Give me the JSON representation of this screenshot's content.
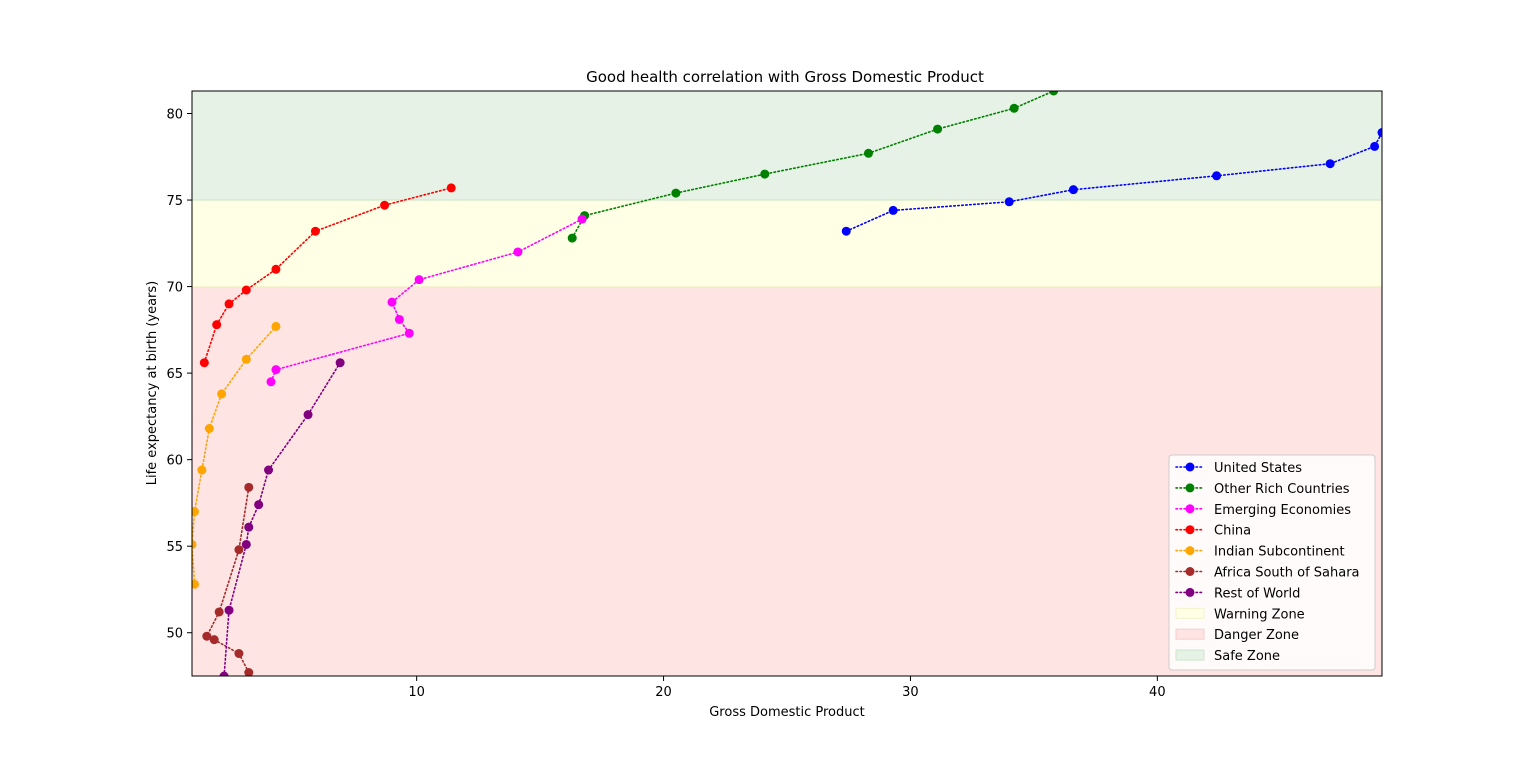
{
  "chart_data": {
    "type": "line",
    "title": "Good health correlation with Gross Domestic Product",
    "xlabel": "Gross Domestic Product",
    "ylabel": "Life expectancy at birth (years)",
    "xlim": [
      0.9,
      49.1
    ],
    "ylim": [
      47.5,
      81.3
    ],
    "xticks": [
      10,
      20,
      30,
      40
    ],
    "yticks": [
      50,
      55,
      60,
      65,
      70,
      75,
      80
    ],
    "grid": false,
    "legend_position": "lower-right",
    "zones": [
      {
        "name": "Danger Zone",
        "y0": 47.5,
        "y1": 70,
        "color": "#ffe4e4",
        "edge": "#f7cccc"
      },
      {
        "name": "Warning Zone",
        "y0": 70,
        "y1": 75,
        "color": "#ffffe6",
        "edge": "#f2f2cc"
      },
      {
        "name": "Safe Zone",
        "y0": 75,
        "y1": 81.3,
        "color": "#e5f2e5",
        "edge": "#cce5cc"
      }
    ],
    "series": [
      {
        "name": "United States",
        "color": "#0000ff",
        "points": [
          [
            27.4,
            73.2
          ],
          [
            29.3,
            74.4
          ],
          [
            34.0,
            74.9
          ],
          [
            36.6,
            75.6
          ],
          [
            42.4,
            76.4
          ],
          [
            47.0,
            77.1
          ],
          [
            48.8,
            78.1
          ],
          [
            49.1,
            78.9
          ]
        ]
      },
      {
        "name": "Other Rich Countries",
        "color": "#008000",
        "points": [
          [
            16.3,
            72.8
          ],
          [
            16.8,
            74.1
          ],
          [
            20.5,
            75.4
          ],
          [
            24.1,
            76.5
          ],
          [
            28.3,
            77.7
          ],
          [
            31.1,
            79.1
          ],
          [
            34.2,
            80.3
          ],
          [
            35.8,
            81.3
          ]
        ]
      },
      {
        "name": "Emerging Economies",
        "color": "#ff00ff",
        "points": [
          [
            4.1,
            64.5
          ],
          [
            4.3,
            65.2
          ],
          [
            9.7,
            67.3
          ],
          [
            9.3,
            68.1
          ],
          [
            9.0,
            69.1
          ],
          [
            10.1,
            70.4
          ],
          [
            14.1,
            72.0
          ],
          [
            16.7,
            73.9
          ]
        ]
      },
      {
        "name": "China",
        "color": "#ff0000",
        "points": [
          [
            1.4,
            65.6
          ],
          [
            1.9,
            67.8
          ],
          [
            2.4,
            69.0
          ],
          [
            3.1,
            69.8
          ],
          [
            4.3,
            71.0
          ],
          [
            5.9,
            73.2
          ],
          [
            8.7,
            74.7
          ],
          [
            11.4,
            75.7
          ]
        ]
      },
      {
        "name": "Indian Subcontinent",
        "color": "#ffa500",
        "points": [
          [
            1.0,
            52.8
          ],
          [
            0.9,
            55.1
          ],
          [
            1.0,
            57.0
          ],
          [
            1.3,
            59.4
          ],
          [
            1.6,
            61.8
          ],
          [
            2.1,
            63.8
          ],
          [
            3.1,
            65.8
          ],
          [
            4.3,
            67.7
          ]
        ]
      },
      {
        "name": "Africa South of Sahara",
        "color": "#a52a2a",
        "points": [
          [
            3.2,
            47.7
          ],
          [
            2.8,
            48.8
          ],
          [
            1.8,
            49.6
          ],
          [
            1.5,
            49.8
          ],
          [
            2.0,
            51.2
          ],
          [
            2.8,
            54.8
          ],
          [
            3.2,
            58.4
          ]
        ]
      },
      {
        "name": "Rest of World",
        "color": "#800080",
        "points": [
          [
            2.2,
            47.5
          ],
          [
            2.4,
            51.3
          ],
          [
            3.1,
            55.1
          ],
          [
            3.2,
            56.1
          ],
          [
            3.6,
            57.4
          ],
          [
            4.0,
            59.4
          ],
          [
            5.6,
            62.6
          ],
          [
            6.9,
            65.6
          ]
        ]
      }
    ]
  }
}
